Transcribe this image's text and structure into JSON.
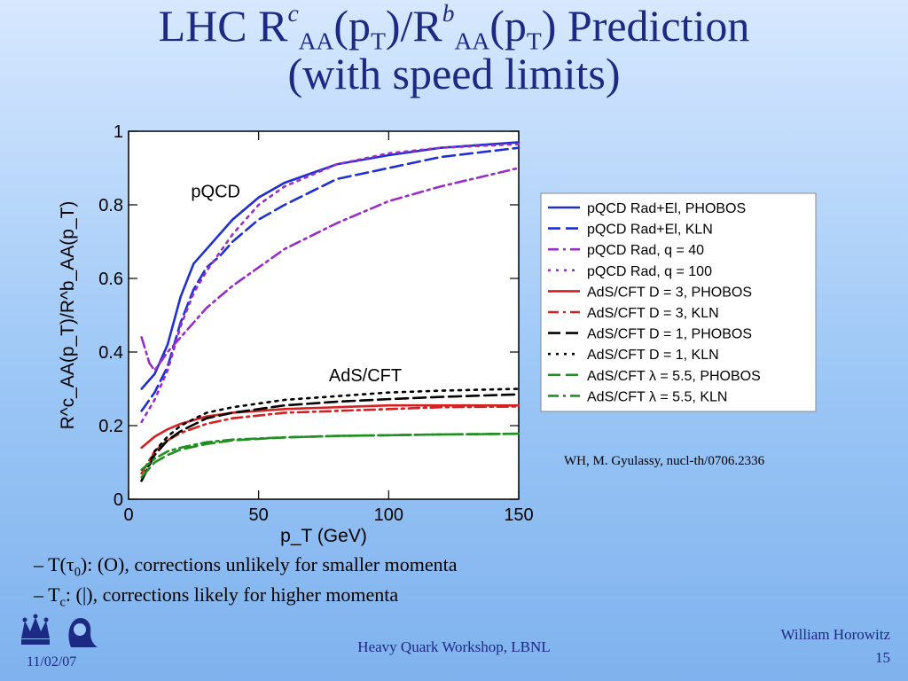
{
  "slide": {
    "title_pre": "LHC R",
    "title_sup1": "c",
    "title_sub1": "AA",
    "title_mid1": "(p",
    "title_sub2": "T",
    "title_mid2": ")/R",
    "title_sup2": "b",
    "title_sub3": "AA",
    "title_mid3": "(p",
    "title_sub4": "T",
    "title_end": ") Prediction",
    "title_line2": "(with speed limits)",
    "credit": "WH, M. Gyulassy, nucl-th/0706.2336",
    "bullet1_pre": "– T(τ",
    "bullet1_sub": "0",
    "bullet1_post": "): (O), corrections unlikely for smaller momenta",
    "bullet2_pre": "– T",
    "bullet2_sub": "c",
    "bullet2_post": ": (|), corrections likely for higher momenta",
    "footer_center": "Heavy Quark Workshop, LBNL",
    "footer_date": "11/02/07",
    "footer_author": "William Horowitz",
    "page_number": "15"
  },
  "chart_data": {
    "type": "line",
    "xlabel": "p_T (GeV)",
    "ylabel": "R^c_AA(p_T)/R^b_AA(p_T)",
    "xlim": [
      0,
      150
    ],
    "ylim": [
      0,
      1
    ],
    "xticks": [
      0,
      50,
      100,
      150
    ],
    "yticks": [
      0,
      0.2,
      0.4,
      0.6,
      0.8,
      1
    ],
    "annotations": [
      {
        "text": "pQCD",
        "x": 24,
        "y": 0.82
      },
      {
        "text": "AdS/CFT",
        "x": 77,
        "y": 0.32
      }
    ],
    "legend_position": "right",
    "series": [
      {
        "name": "pQCD Rad+El, PHOBOS",
        "color": "#1f2fd0",
        "dash": "solid",
        "x": [
          5,
          10,
          15,
          20,
          25,
          30,
          35,
          40,
          50,
          60,
          80,
          100,
          120,
          150
        ],
        "y": [
          0.3,
          0.34,
          0.42,
          0.55,
          0.64,
          0.68,
          0.72,
          0.76,
          0.82,
          0.86,
          0.91,
          0.935,
          0.955,
          0.97
        ]
      },
      {
        "name": "pQCD Rad+El, KLN",
        "color": "#1f2fd0",
        "dash": "dash",
        "x": [
          5,
          10,
          15,
          20,
          25,
          30,
          35,
          40,
          50,
          60,
          80,
          100,
          120,
          150
        ],
        "y": [
          0.24,
          0.29,
          0.36,
          0.48,
          0.57,
          0.63,
          0.66,
          0.7,
          0.76,
          0.8,
          0.87,
          0.9,
          0.93,
          0.955
        ]
      },
      {
        "name": "pQCD Rad, q = 40",
        "color": "#9a2cc7",
        "dash": "dashdot",
        "x": [
          5,
          8,
          10,
          15,
          20,
          30,
          40,
          60,
          80,
          100,
          120,
          150
        ],
        "y": [
          0.44,
          0.37,
          0.35,
          0.4,
          0.44,
          0.52,
          0.58,
          0.68,
          0.75,
          0.81,
          0.85,
          0.9
        ]
      },
      {
        "name": "pQCD Rad, q = 100",
        "color": "#9a2cc7",
        "dash": "dot",
        "x": [
          5,
          10,
          15,
          20,
          25,
          30,
          40,
          50,
          60,
          80,
          100,
          120,
          150
        ],
        "y": [
          0.21,
          0.27,
          0.35,
          0.47,
          0.56,
          0.62,
          0.72,
          0.8,
          0.85,
          0.91,
          0.94,
          0.955,
          0.965
        ]
      },
      {
        "name": "AdS/CFT D = 3, PHOBOS",
        "color": "#d42020",
        "dash": "solid",
        "x": [
          5,
          10,
          15,
          20,
          30,
          40,
          60,
          80,
          100,
          120,
          150
        ],
        "y": [
          0.14,
          0.17,
          0.19,
          0.205,
          0.225,
          0.235,
          0.245,
          0.25,
          0.255,
          0.255,
          0.255
        ]
      },
      {
        "name": "AdS/CFT D = 3, KLN",
        "color": "#d42020",
        "dash": "dashdot",
        "x": [
          5,
          10,
          15,
          20,
          30,
          40,
          60,
          80,
          100,
          120,
          150
        ],
        "y": [
          0.07,
          0.13,
          0.16,
          0.18,
          0.205,
          0.22,
          0.235,
          0.24,
          0.245,
          0.25,
          0.252
        ]
      },
      {
        "name": "AdS/CFT D = 1, PHOBOS",
        "color": "#000000",
        "dash": "dash",
        "x": [
          5,
          10,
          15,
          20,
          30,
          40,
          60,
          80,
          100,
          120,
          150
        ],
        "y": [
          0.05,
          0.12,
          0.16,
          0.185,
          0.22,
          0.235,
          0.255,
          0.265,
          0.272,
          0.278,
          0.285
        ]
      },
      {
        "name": "AdS/CFT D = 1, KLN",
        "color": "#000000",
        "dash": "dot",
        "x": [
          5,
          10,
          15,
          20,
          30,
          40,
          60,
          80,
          100,
          120,
          150
        ],
        "y": [
          0.05,
          0.13,
          0.17,
          0.2,
          0.235,
          0.25,
          0.27,
          0.28,
          0.29,
          0.295,
          0.3
        ]
      },
      {
        "name": "AdS/CFT λ = 5.5, PHOBOS",
        "color": "#1f8f1f",
        "dash": "dash",
        "x": [
          5,
          10,
          15,
          20,
          30,
          40,
          60,
          80,
          100,
          120,
          150
        ],
        "y": [
          0.06,
          0.1,
          0.12,
          0.135,
          0.15,
          0.16,
          0.168,
          0.172,
          0.174,
          0.176,
          0.178
        ]
      },
      {
        "name": "AdS/CFT λ = 5.5, KLN",
        "color": "#1f8f1f",
        "dash": "dashdot",
        "x": [
          5,
          10,
          15,
          20,
          30,
          40,
          60,
          80,
          100,
          120,
          150
        ],
        "y": [
          0.08,
          0.11,
          0.13,
          0.14,
          0.155,
          0.162,
          0.168,
          0.172,
          0.174,
          0.176,
          0.178
        ]
      }
    ]
  }
}
